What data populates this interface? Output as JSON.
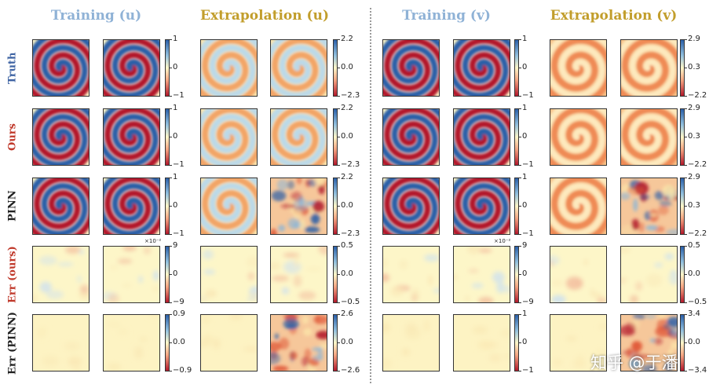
{
  "column_titles": [
    {
      "text": "Training (u)",
      "color": "#8fb2d6"
    },
    {
      "text": "Extrapolation (u)",
      "color": "#c29e2c"
    },
    {
      "text": "Training (v)",
      "color": "#8fb2d6"
    },
    {
      "text": "Extrapolation (v)",
      "color": "#c29e2c"
    }
  ],
  "row_labels": [
    {
      "text": "Truth",
      "color": "#3e63a3"
    },
    {
      "text": "Ours",
      "color": "#c0392b"
    },
    {
      "text": "PINN",
      "color": "#222222"
    },
    {
      "text": "Err (ours)",
      "color": "#c0392b"
    },
    {
      "text": "Err (PINN)",
      "color": "#222222"
    }
  ],
  "colorbars": [
    [
      {
        "top": "1",
        "mid": "0",
        "bot": "−1"
      },
      {
        "top": "2.2",
        "mid": "0.0",
        "bot": "−2.3"
      },
      {
        "top": "1",
        "mid": "0",
        "bot": "−1"
      },
      {
        "top": "2.9",
        "mid": "0.3",
        "bot": "−2.2"
      }
    ],
    [
      {
        "top": "1",
        "mid": "0",
        "bot": "−1"
      },
      {
        "top": "2.2",
        "mid": "0.0",
        "bot": "−2.3"
      },
      {
        "top": "1",
        "mid": "0",
        "bot": "−1"
      },
      {
        "top": "2.9",
        "mid": "0.3",
        "bot": "−2.2"
      }
    ],
    [
      {
        "top": "1",
        "mid": "0",
        "bot": "−1"
      },
      {
        "top": "2.2",
        "mid": "0.0",
        "bot": "−2.3"
      },
      {
        "top": "1",
        "mid": "0",
        "bot": "−1"
      },
      {
        "top": "2.9",
        "mid": "0.3",
        "bot": "−2.2"
      }
    ],
    [
      {
        "top": "9",
        "mid": "0",
        "bot": "−9",
        "sci": "×10⁻²"
      },
      {
        "top": "0.5",
        "mid": "0.0",
        "bot": "−0.5"
      },
      {
        "top": "9",
        "mid": "0",
        "bot": "−9",
        "sci": "×10⁻²"
      },
      {
        "top": "0.5",
        "mid": "0.0",
        "bot": "−0.5"
      }
    ],
    [
      {
        "top": "0.9",
        "mid": "0.0",
        "bot": "−0.9"
      },
      {
        "top": "2.6",
        "mid": "0.0",
        "bot": "−2.6"
      },
      {
        "top": "1",
        "mid": "0",
        "bot": "−1"
      },
      {
        "top": "3.4",
        "mid": "0.0",
        "bot": "−3.4"
      }
    ]
  ],
  "panel_kinds": [
    [
      "spiral",
      "spiral",
      "pale-spiral",
      "pale-spiral",
      "spiral",
      "spiral",
      "warm-spiral",
      "warm-spiral"
    ],
    [
      "spiral",
      "spiral",
      "pale-spiral",
      "pale-spiral",
      "spiral",
      "spiral",
      "warm-spiral",
      "warm-spiral"
    ],
    [
      "spiral",
      "spiral",
      "pale-spiral",
      "noisy",
      "spiral",
      "spiral",
      "warm-spiral",
      "noisy"
    ],
    [
      "error-faint",
      "error-faint",
      "error-faint",
      "error-faint",
      "error-faint",
      "error-faint",
      "error-faint",
      "error-faint"
    ],
    [
      "error-flat",
      "error-flat",
      "error-flat",
      "noisy",
      "error-flat",
      "error-flat",
      "error-flat",
      "noisy"
    ]
  ],
  "colormap": {
    "red": "#b2182b",
    "mid": "#fdf6c8",
    "blue": "#2a5fa8"
  },
  "watermark": "知乎 @于潘"
}
